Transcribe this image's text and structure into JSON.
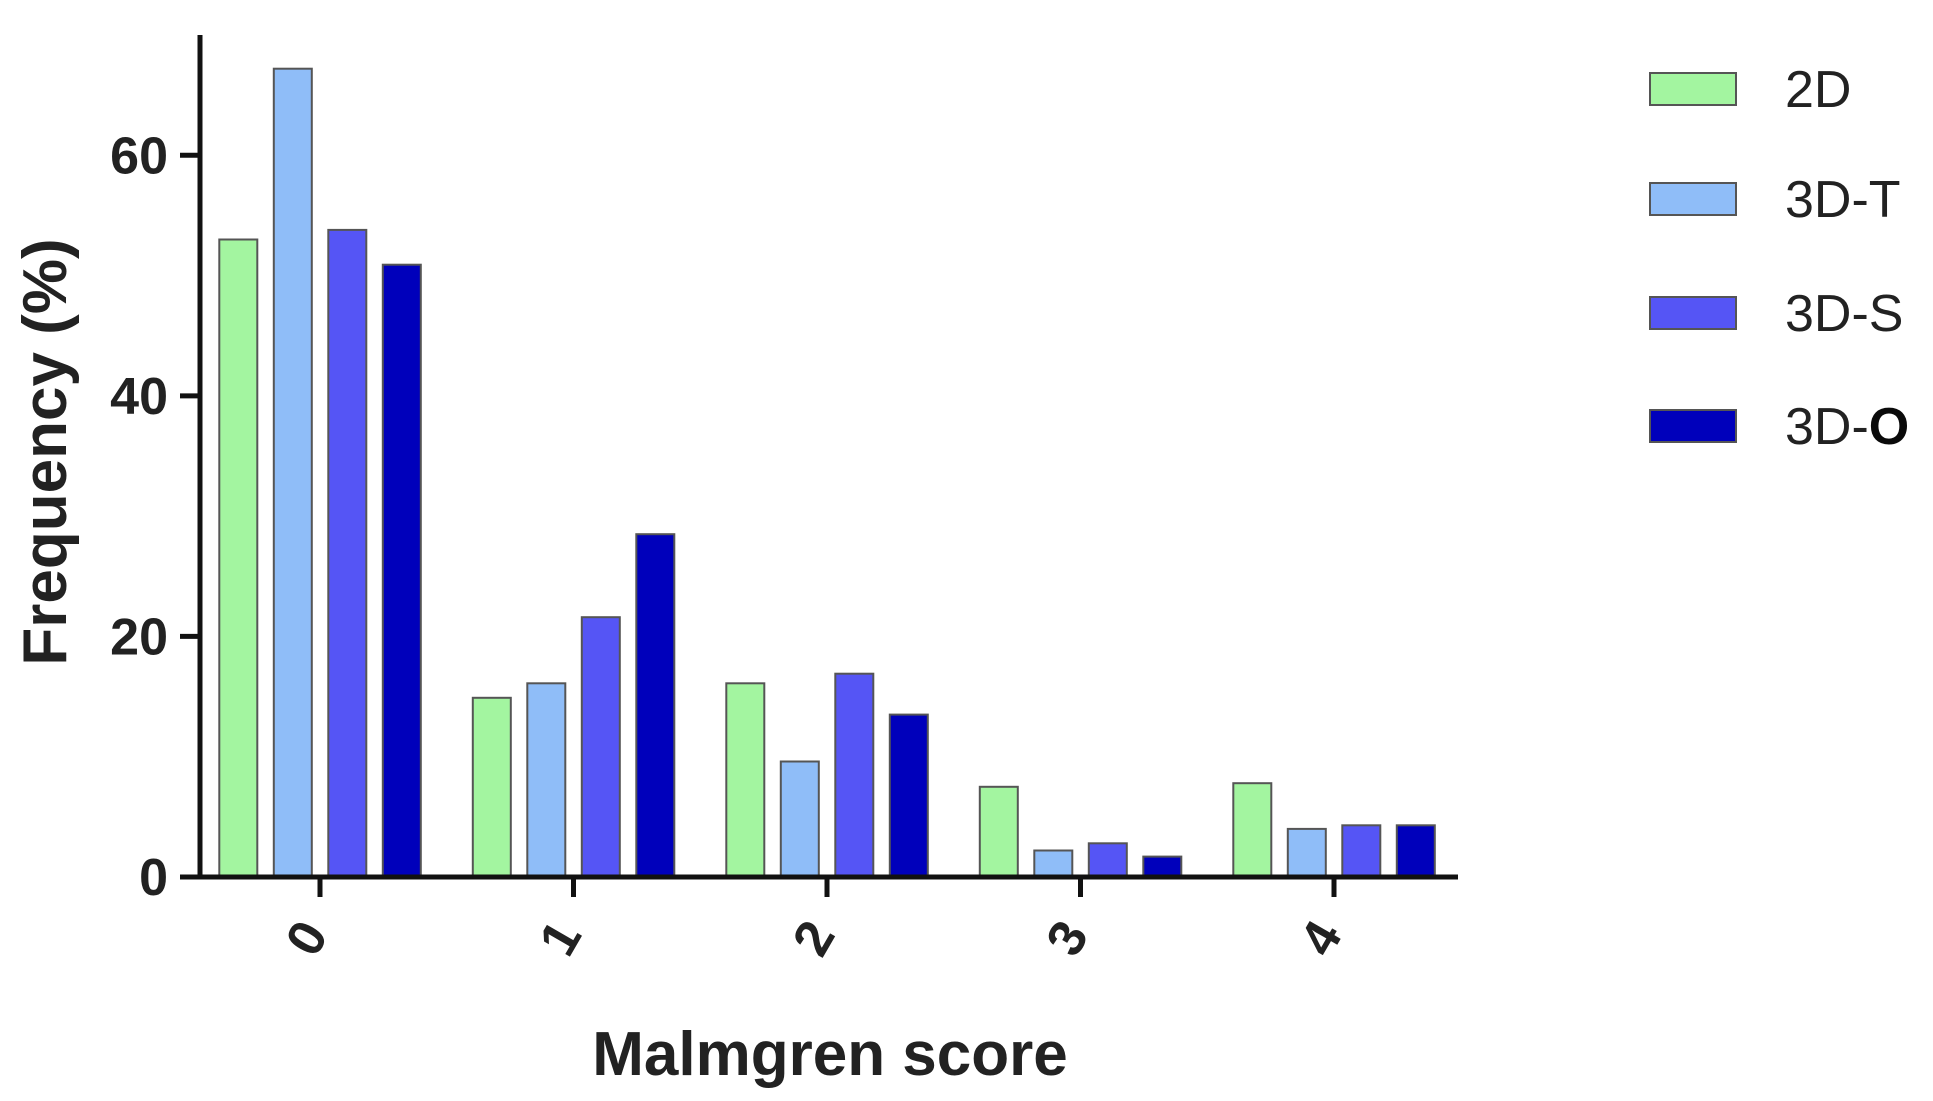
{
  "chart_data": {
    "type": "bar",
    "categories": [
      "0",
      "1",
      "2",
      "3",
      "4"
    ],
    "series": [
      {
        "name": "2D",
        "color": "#a3f5a0",
        "values": [
          53.0,
          14.9,
          16.1,
          7.5,
          7.8
        ]
      },
      {
        "name": "3D-T",
        "color": "#8fbdf8",
        "values": [
          67.2,
          16.1,
          9.6,
          2.2,
          4.0
        ]
      },
      {
        "name": "3D-S",
        "color": "#5555f5",
        "values": [
          53.8,
          21.6,
          16.9,
          2.8,
          4.3
        ]
      },
      {
        "name": "3D-O",
        "color": "#0000bb",
        "values": [
          50.9,
          28.5,
          13.5,
          1.7,
          4.3
        ]
      }
    ],
    "legend_labels": [
      {
        "prefix": "2D",
        "suffix": ""
      },
      {
        "prefix": "3D-T",
        "suffix": ""
      },
      {
        "prefix": "3D-S",
        "suffix": ""
      },
      {
        "prefix": "3D-",
        "suffix": "O"
      }
    ],
    "xlabel": "Malmgren score",
    "ylabel": "Frequency (%)",
    "ylim": [
      0,
      70
    ],
    "yticks": [
      "0",
      "20",
      "40",
      "60"
    ],
    "grid": false,
    "legend_position": "top-right"
  }
}
